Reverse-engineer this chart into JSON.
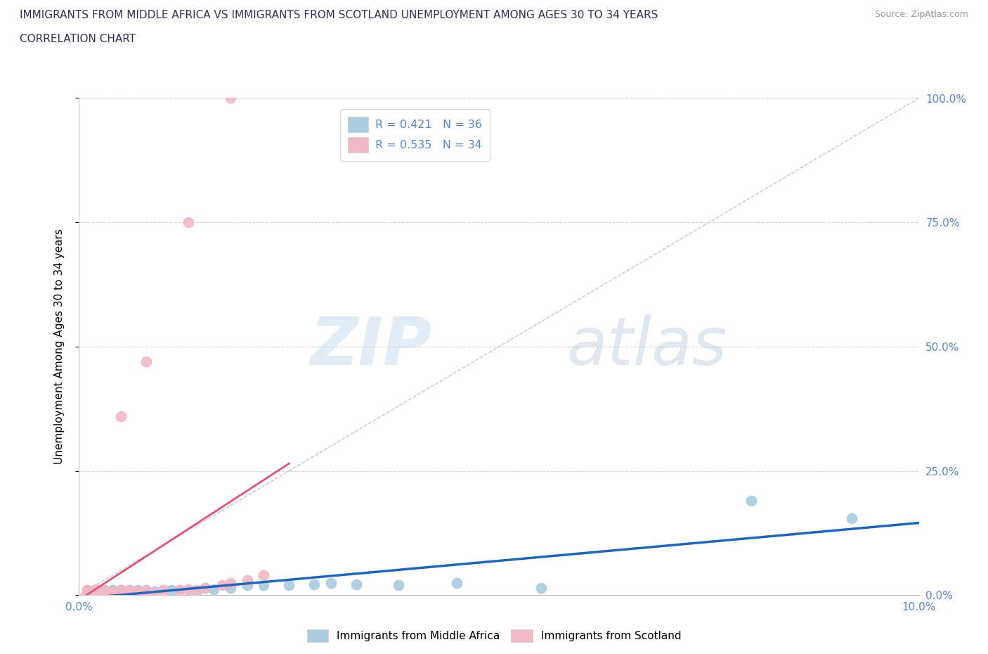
{
  "title_line1": "IMMIGRANTS FROM MIDDLE AFRICA VS IMMIGRANTS FROM SCOTLAND UNEMPLOYMENT AMONG AGES 30 TO 34 YEARS",
  "title_line2": "CORRELATION CHART",
  "source": "Source: ZipAtlas.com",
  "ylabel": "Unemployment Among Ages 30 to 34 years",
  "watermark_zip": "ZIP",
  "watermark_atlas": "atlas",
  "blue_color": "#a8cce0",
  "pink_color": "#f2b8c6",
  "blue_line_color": "#2266bb",
  "pink_line_color": "#e05575",
  "diagonal_color": "#ddbbcc",
  "grid_color": "#cccccc",
  "title_color": "#333355",
  "axis_label_color": "#5588cc",
  "right_tick_color": "#5588cc",
  "blue_scatter": [
    [
      0.001,
      0.01
    ],
    [
      0.002,
      0.01
    ],
    [
      0.002,
      0.005
    ],
    [
      0.003,
      0.01
    ],
    [
      0.003,
      0.005
    ],
    [
      0.004,
      0.008
    ],
    [
      0.004,
      0.01
    ],
    [
      0.005,
      0.005
    ],
    [
      0.005,
      0.01
    ],
    [
      0.006,
      0.01
    ],
    [
      0.006,
      0.005
    ],
    [
      0.007,
      0.01
    ],
    [
      0.007,
      0.008
    ],
    [
      0.008,
      0.01
    ],
    [
      0.008,
      0.005
    ],
    [
      0.009,
      0.008
    ],
    [
      0.01,
      0.01
    ],
    [
      0.01,
      0.005
    ],
    [
      0.011,
      0.01
    ],
    [
      0.012,
      0.01
    ],
    [
      0.013,
      0.012
    ],
    [
      0.014,
      0.008
    ],
    [
      0.015,
      0.015
    ],
    [
      0.016,
      0.012
    ],
    [
      0.018,
      0.015
    ],
    [
      0.02,
      0.02
    ],
    [
      0.022,
      0.02
    ],
    [
      0.025,
      0.02
    ],
    [
      0.028,
      0.022
    ],
    [
      0.03,
      0.025
    ],
    [
      0.033,
      0.022
    ],
    [
      0.038,
      0.02
    ],
    [
      0.045,
      0.025
    ],
    [
      0.055,
      0.015
    ],
    [
      0.08,
      0.19
    ],
    [
      0.092,
      0.155
    ]
  ],
  "pink_scatter": [
    [
      0.001,
      0.005
    ],
    [
      0.001,
      0.01
    ],
    [
      0.002,
      0.005
    ],
    [
      0.002,
      0.008
    ],
    [
      0.002,
      0.012
    ],
    [
      0.003,
      0.005
    ],
    [
      0.003,
      0.008
    ],
    [
      0.003,
      0.01
    ],
    [
      0.004,
      0.005
    ],
    [
      0.004,
      0.008
    ],
    [
      0.005,
      0.005
    ],
    [
      0.005,
      0.01
    ],
    [
      0.005,
      0.008
    ],
    [
      0.006,
      0.005
    ],
    [
      0.006,
      0.01
    ],
    [
      0.007,
      0.005
    ],
    [
      0.007,
      0.008
    ],
    [
      0.008,
      0.005
    ],
    [
      0.008,
      0.01
    ],
    [
      0.009,
      0.005
    ],
    [
      0.01,
      0.005
    ],
    [
      0.01,
      0.008
    ],
    [
      0.01,
      0.01
    ],
    [
      0.012,
      0.01
    ],
    [
      0.013,
      0.012
    ],
    [
      0.014,
      0.01
    ],
    [
      0.015,
      0.015
    ],
    [
      0.017,
      0.02
    ],
    [
      0.018,
      0.025
    ],
    [
      0.02,
      0.03
    ],
    [
      0.022,
      0.04
    ],
    [
      0.005,
      0.36
    ],
    [
      0.008,
      0.47
    ],
    [
      0.013,
      0.75
    ],
    [
      0.018,
      1.0
    ]
  ],
  "xlim": [
    0.0,
    0.1
  ],
  "ylim": [
    0.0,
    1.0
  ],
  "xticks": [
    0.0,
    0.02,
    0.04,
    0.06,
    0.08,
    0.1
  ],
  "yticks": [
    0.0,
    0.25,
    0.5,
    0.75,
    1.0
  ]
}
